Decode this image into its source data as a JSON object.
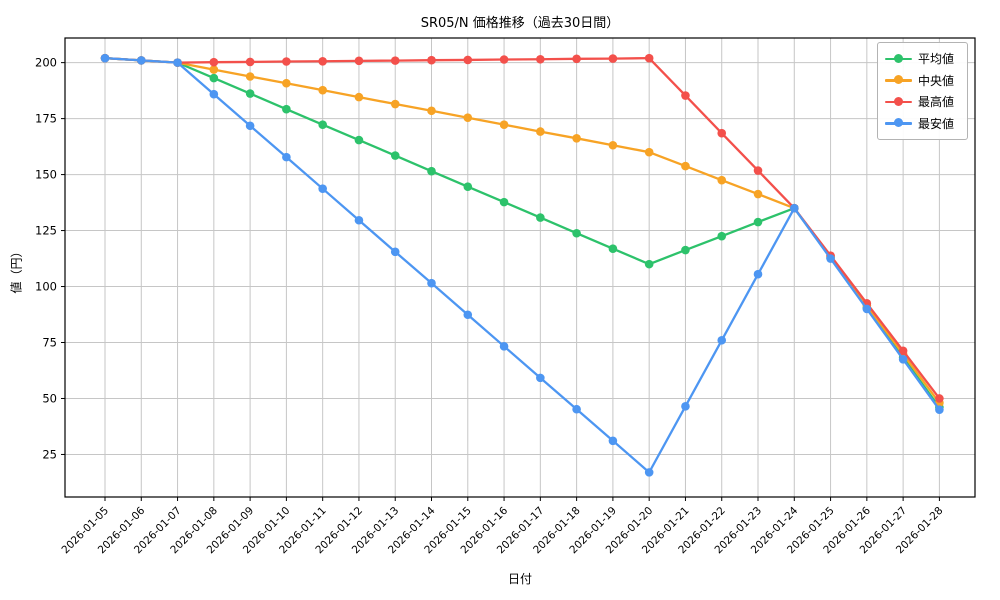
{
  "chart": {
    "title": "SR05/N 価格推移（過去30日間）",
    "xlabel": "日付",
    "ylabel": "値（円）"
  },
  "chart_data": {
    "type": "line",
    "x": [
      "2026-01-05",
      "2026-01-06",
      "2026-01-07",
      "2026-01-08",
      "2026-01-09",
      "2026-01-10",
      "2026-01-11",
      "2026-01-12",
      "2026-01-13",
      "2026-01-14",
      "2026-01-15",
      "2026-01-16",
      "2026-01-17",
      "2026-01-18",
      "2026-01-19",
      "2026-01-20",
      "2026-01-21",
      "2026-01-22",
      "2026-01-23",
      "2026-01-24",
      "2026-01-25",
      "2026-01-26",
      "2026-01-27",
      "2026-01-28"
    ],
    "series": [
      {
        "name": "平均値",
        "color": "#2dc26b",
        "values": [
          202,
          201,
          200,
          193.1,
          186.2,
          179.2,
          172.3,
          165.4,
          158.5,
          151.5,
          144.6,
          137.7,
          130.8,
          123.8,
          116.9,
          110,
          116.3,
          122.5,
          128.8,
          135,
          112.8,
          90.5,
          68.3,
          46
        ]
      },
      {
        "name": "中央値",
        "color": "#f7a325",
        "values": [
          202,
          201,
          200,
          196.9,
          193.8,
          190.8,
          187.7,
          184.6,
          181.5,
          178.5,
          175.4,
          172.3,
          169.2,
          166.2,
          163.1,
          160,
          153.8,
          147.5,
          141.3,
          135,
          113.3,
          91.5,
          69.8,
          48
        ]
      },
      {
        "name": "最高値",
        "color": "#f3504b",
        "values": [
          202,
          201,
          200,
          200.2,
          200.3,
          200.5,
          200.6,
          200.8,
          200.9,
          201.1,
          201.2,
          201.4,
          201.5,
          201.7,
          201.8,
          202,
          185.3,
          168.5,
          151.8,
          135,
          113.8,
          92.5,
          71.3,
          50
        ]
      },
      {
        "name": "最安値",
        "color": "#4d96f2",
        "values": [
          202,
          201,
          200,
          185.9,
          171.8,
          157.8,
          143.7,
          129.6,
          115.5,
          101.5,
          87.4,
          73.3,
          59.2,
          45.2,
          31.1,
          17,
          46.5,
          76,
          105.5,
          135,
          112.5,
          90,
          67.5,
          45
        ]
      }
    ],
    "title": "SR05/N 価格推移（過去30日間）",
    "xlabel": "日付",
    "ylabel": "値（円）",
    "yticks": [
      25,
      50,
      75,
      100,
      125,
      150,
      175,
      200
    ],
    "ylim": [
      6,
      211
    ],
    "grid": true,
    "grid_color": "#c6c6c6",
    "legend_position": "upper right",
    "legend_entries": [
      "平均値",
      "中央値",
      "最高値",
      "最安値"
    ]
  }
}
